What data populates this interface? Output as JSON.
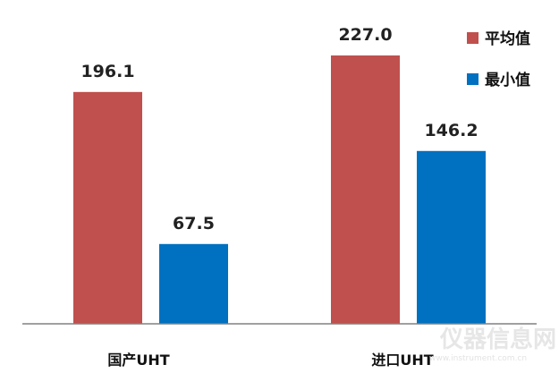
{
  "chart_data": {
    "type": "bar",
    "categories": [
      "国产UHT",
      "进口UHT"
    ],
    "series": [
      {
        "name": "平均值",
        "values": [
          196.1,
          227.0
        ],
        "labels": [
          "196.1",
          "227.0"
        ],
        "color": "#C0504D"
      },
      {
        "name": "最小值",
        "values": [
          67.5,
          146.2
        ],
        "labels": [
          "67.5",
          "146.2"
        ],
        "color": "#0070C0"
      }
    ],
    "title": "",
    "xlabel": "",
    "ylabel": "",
    "ylim": [
      0,
      250
    ],
    "grid": false,
    "legend": "top-right"
  },
  "watermark": {
    "text": "仪器信息网",
    "url_text": "www.instrument.com.cn"
  }
}
